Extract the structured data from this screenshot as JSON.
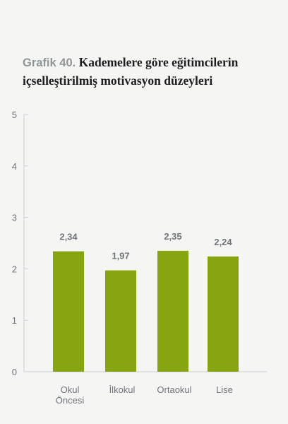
{
  "title": {
    "prefix": "Grafik 40.",
    "line1": "Kademelere göre eğitimcilerin",
    "line2": "içselleştirilmiş motivasyon düzeyleri"
  },
  "chart_data": {
    "type": "bar",
    "categories": [
      [
        "Okul",
        "Öncesi"
      ],
      [
        "İlkokul"
      ],
      [
        "Ortaokul"
      ],
      [
        "Lise"
      ]
    ],
    "values": [
      2.34,
      1.97,
      2.35,
      2.24
    ],
    "data_labels": [
      "2,34",
      "1,97",
      "2,35",
      "2,24"
    ],
    "yticks": [
      "0",
      "1",
      "2",
      "3",
      "4",
      "5"
    ],
    "ylim": [
      0,
      5
    ],
    "bar_color": "#86a511",
    "axis_color": "#c9cccf",
    "legend": "none",
    "grid": false
  }
}
